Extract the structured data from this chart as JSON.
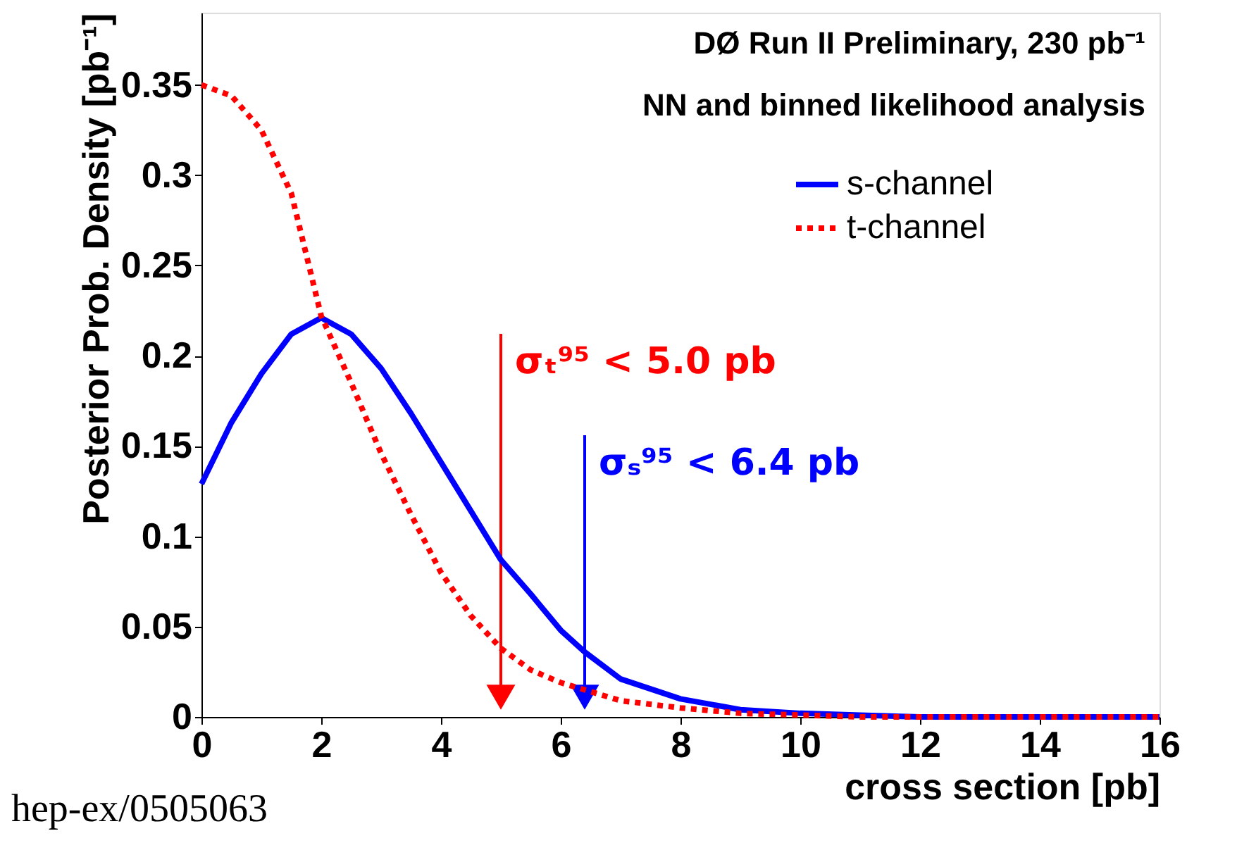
{
  "chart_data": {
    "type": "line",
    "ylabel": "Posterior Prob. Density [pb⁻¹]",
    "xlabel": "cross section [pb]",
    "annotations": [
      "DØ Run II Preliminary, 230 pb⁻¹",
      "NN and binned likelihood analysis",
      "hep-ex/0505063"
    ],
    "xlim": [
      0,
      16
    ],
    "xticks": [
      0,
      2,
      4,
      6,
      8,
      10,
      12,
      14,
      16
    ],
    "ylim": [
      0,
      0.39
    ],
    "yticks": [
      {
        "value": 0,
        "label": "0"
      },
      0.05,
      {
        "value": 0.1,
        "label": "0.1"
      },
      0.15,
      {
        "value": 0.2,
        "label": "0.2"
      },
      0.25,
      {
        "value": 0.3,
        "label": "0.3"
      },
      0.35
    ],
    "grid": false,
    "legend": "top right",
    "series": [
      {
        "name": "s-channel",
        "color": "#0000ff",
        "line_style": "solid",
        "x": [
          0,
          0.5,
          1,
          1.5,
          2,
          2.5,
          3,
          3.5,
          4,
          4.5,
          5,
          5.5,
          6,
          6.4,
          7,
          8,
          9,
          10,
          11,
          12,
          13,
          14,
          15,
          16
        ],
        "values": [
          0.129,
          0.163,
          0.19,
          0.212,
          0.221,
          0.212,
          0.193,
          0.168,
          0.141,
          0.114,
          0.087,
          0.068,
          0.048,
          0.036,
          0.021,
          0.01,
          0.004,
          0.002,
          0.001,
          0,
          0,
          0,
          0,
          0
        ]
      },
      {
        "name": "t-channel",
        "color": "#ff0000",
        "line_style": "dotted",
        "x": [
          0,
          0.5,
          1,
          1.5,
          2,
          2.5,
          3,
          3.5,
          4,
          4.5,
          5,
          5.5,
          6,
          6.5,
          7,
          8,
          9,
          10,
          11,
          12,
          13,
          14,
          15,
          16
        ],
        "values": [
          0.35,
          0.344,
          0.325,
          0.29,
          0.222,
          0.185,
          0.146,
          0.112,
          0.08,
          0.056,
          0.038,
          0.026,
          0.019,
          0.014,
          0.009,
          0.005,
          0.002,
          0.001,
          0,
          0,
          0,
          0,
          0,
          0
        ]
      }
    ],
    "ref_lines": [
      {
        "axis": "x",
        "value": 5.0,
        "label": "σₜ⁹⁵ < 5.0 pb",
        "color": "#ff0000"
      },
      {
        "axis": "x",
        "value": 6.4,
        "label": "σₛ⁹⁵ < 6.4 pb",
        "color": "#0000ff"
      }
    ]
  }
}
